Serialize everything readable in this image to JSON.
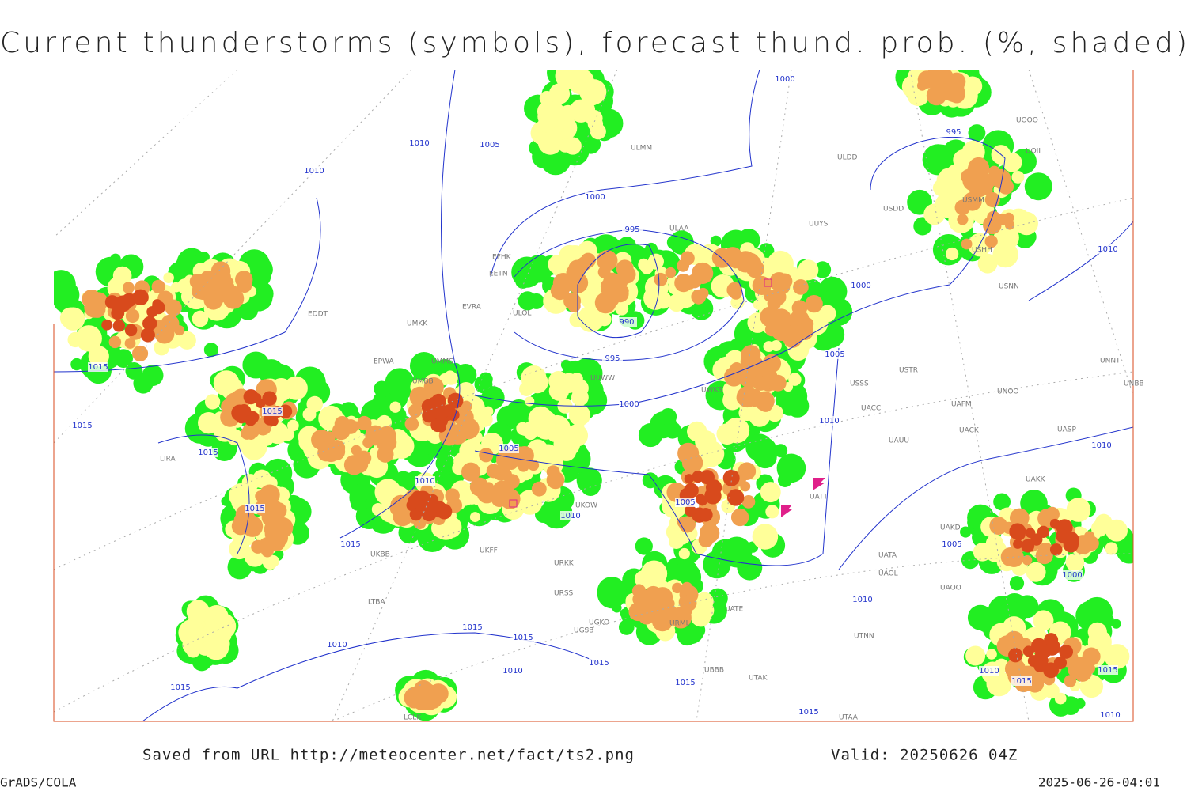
{
  "title": "Current thunderstorms (symbols), forecast thund. prob. (%, shaded)",
  "footer": {
    "source": "Saved from URL http://meteocenter.net/fact/ts2.png",
    "valid": "Valid: 20250626 04Z",
    "software": "GrADS/COLA",
    "timestamp": "2025-06-26-04:01"
  },
  "isobar_labels": [
    "1010",
    "1005",
    "1010",
    "1000",
    "995",
    "1000",
    "995",
    "990",
    "995",
    "1000",
    "1000",
    "1010",
    "1005",
    "1010",
    "1010",
    "1015",
    "1015",
    "1015",
    "1015",
    "1005",
    "1010",
    "1005",
    "1010",
    "1015",
    "1015",
    "1005",
    "1000",
    "1010",
    "1015",
    "1015",
    "1010",
    "1015",
    "1010",
    "1015",
    "1015",
    "1015",
    "1010",
    "1015",
    "1015",
    "1010"
  ],
  "stations": [
    "ULMM",
    "ULDD",
    "USDD",
    "USMM",
    "UOII",
    "UOOO",
    "ULAA",
    "UUYS",
    "USHH",
    "USNN",
    "EFHK",
    "EETN",
    "EVRA",
    "ULOL",
    "EDDT",
    "UMKK",
    "EPWA",
    "UMMS",
    "UMBB",
    "UUWW",
    "UWKS",
    "USSS",
    "USTR",
    "UNOO",
    "UNNT",
    "UNBB",
    "UACC",
    "UAFM",
    "UACK",
    "UASP",
    "UAUU",
    "UATT",
    "UAKK",
    "UAKD",
    "UATA",
    "UAOL",
    "UAOO",
    "UTNN",
    "UATE",
    "URML",
    "UGKO",
    "UGSB",
    "URSS",
    "URKK",
    "UKFF",
    "UKBB",
    "LIRA",
    "LTBA",
    "UKOW",
    "UTAA",
    "LCLK",
    "UBBB",
    "UTAK"
  ]
}
